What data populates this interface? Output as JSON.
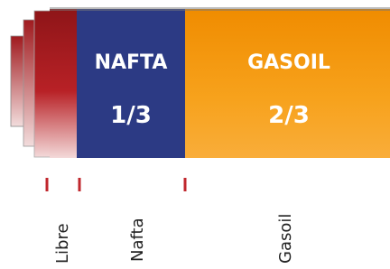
{
  "tank": {
    "sections": [
      {
        "title": "NAFTA",
        "fraction": "1/3"
      },
      {
        "title": "GASOIL",
        "fraction": "2/3"
      }
    ]
  },
  "scale": {
    "labels": [
      "Libre",
      "Nafta",
      "Gasoil"
    ]
  }
}
